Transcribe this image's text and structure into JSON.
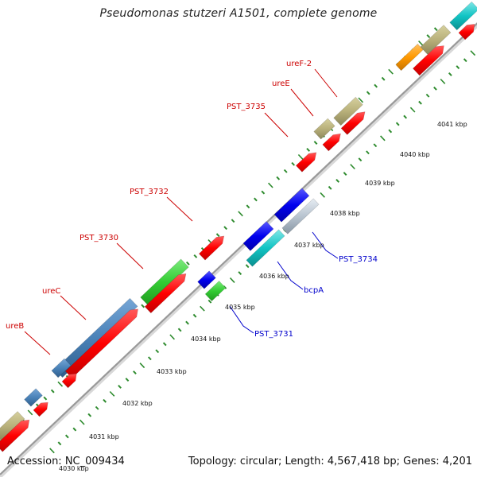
{
  "title": "Pseudomonas stutzeri A1501, complete genome",
  "footer": {
    "accession": "Accession: NC_009434",
    "summary": "Topology: circular; Length: 4,567,418 bp; Genes: 4,201"
  },
  "ticks": [
    {
      "text": "4030 kbp"
    },
    {
      "text": "4031 kbp"
    },
    {
      "text": "4032 kbp"
    },
    {
      "text": "4033 kbp"
    },
    {
      "text": "4034 kbp"
    },
    {
      "text": "4035 kbp"
    },
    {
      "text": "4036 kbp"
    },
    {
      "text": "4037 kbp"
    },
    {
      "text": "4038 kbp"
    },
    {
      "text": "4039 kbp"
    },
    {
      "text": "4040 kbp"
    },
    {
      "text": "4041 kbp"
    }
  ],
  "gene_labels_top": [
    {
      "text": "ureF-2"
    },
    {
      "text": "ureE"
    },
    {
      "text": "PST_3735"
    },
    {
      "text": "PST_3732"
    },
    {
      "text": "PST_3730"
    },
    {
      "text": "ureC"
    },
    {
      "text": "ureB"
    }
  ],
  "gene_labels_bottom": [
    {
      "text": "PST_3734"
    },
    {
      "text": "bcpA"
    },
    {
      "text": "PST_3731"
    }
  ],
  "colors": {
    "label_top": "#cc0000",
    "label_bottom": "#0000cc",
    "backbone": "#999999",
    "dots": "#2e8b2e",
    "red": "#ff0000",
    "khaki": "#b8b07a",
    "steelblue": "#4a82b8",
    "green": "#33cc33",
    "blue": "#0000ee",
    "cyan": "#11c4c4",
    "orange": "#ff9900"
  }
}
